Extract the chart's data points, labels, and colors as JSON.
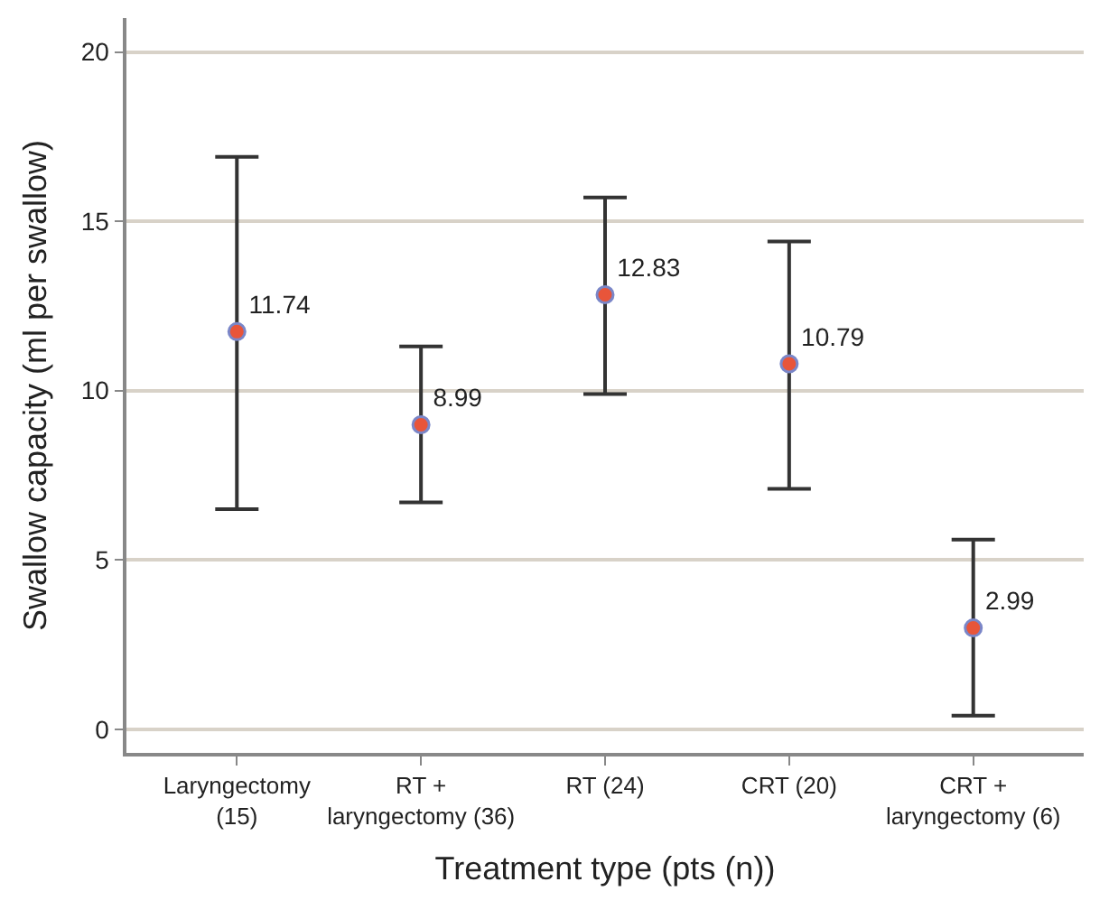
{
  "chart_data": {
    "type": "scatter",
    "xlabel": "Treatment type (pts (n))",
    "ylabel": "Swallow capacity (ml per swallow)",
    "categories": [
      "Laryngectomy\n(15)",
      "RT +\nlaryngectomy (36)",
      "RT (24)",
      "CRT (20)",
      "CRT +\nlaryngectomy (6)"
    ],
    "values": [
      11.74,
      8.99,
      12.83,
      10.79,
      2.99
    ],
    "errors": [
      [
        6.5,
        16.9
      ],
      [
        6.7,
        11.3
      ],
      [
        9.9,
        15.7
      ],
      [
        7.1,
        14.4
      ],
      [
        0.4,
        5.6
      ]
    ],
    "color": "#e8553a",
    "marker": "circle",
    "data_labels": true,
    "ylim": [
      -0.7,
      21
    ],
    "yticks": [
      0,
      5,
      10,
      15,
      20
    ],
    "grid": "y"
  }
}
